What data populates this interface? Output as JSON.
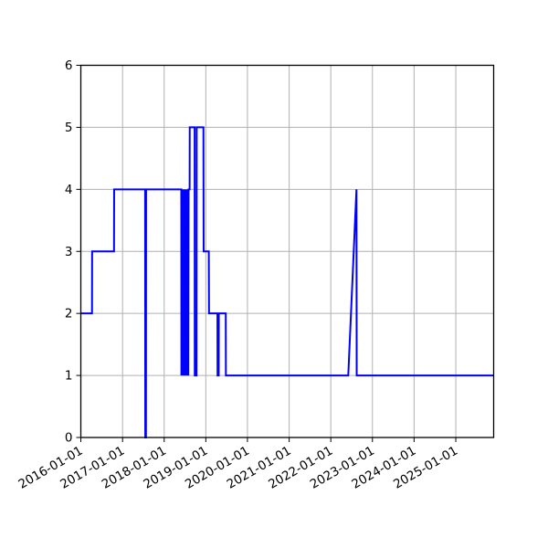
{
  "figure": {
    "background": "#ffffff"
  },
  "chart_data": {
    "type": "line",
    "title": "",
    "xlabel": "",
    "ylabel": "",
    "legend": null,
    "grid": true,
    "grid_color": "#b0b0b0",
    "axis_color": "#000000",
    "xlim": [
      "2016-01-01",
      "2025-11-29"
    ],
    "ylim": [
      0,
      6
    ],
    "x_tick_labels": [
      "2016-01-01",
      "2017-01-01",
      "2018-01-01",
      "2019-01-01",
      "2020-01-01",
      "2021-01-01",
      "2022-01-01",
      "2023-01-01",
      "2024-01-01",
      "2025-01-01"
    ],
    "y_tick_labels": [
      "0",
      "1",
      "2",
      "3",
      "4",
      "5",
      "6"
    ],
    "series": [
      {
        "name": "value-over-time",
        "color": "#0000ff",
        "points": [
          [
            "2016-01-01",
            2
          ],
          [
            "2016-04-08",
            2
          ],
          [
            "2016-04-09",
            3
          ],
          [
            "2016-10-18",
            3
          ],
          [
            "2016-10-19",
            4
          ],
          [
            "2017-07-18",
            4
          ],
          [
            "2017-07-19",
            0
          ],
          [
            "2017-07-25",
            0
          ],
          [
            "2017-07-26",
            4
          ],
          [
            "2018-05-31",
            4
          ],
          [
            "2018-06-01",
            1
          ],
          [
            "2018-06-04",
            4
          ],
          [
            "2018-06-16",
            1
          ],
          [
            "2018-06-19",
            4
          ],
          [
            "2018-07-01",
            1
          ],
          [
            "2018-07-04",
            4
          ],
          [
            "2018-07-16",
            1
          ],
          [
            "2018-07-19",
            4
          ],
          [
            "2018-07-31",
            1
          ],
          [
            "2018-08-03",
            4
          ],
          [
            "2018-08-12",
            4
          ],
          [
            "2018-08-13",
            5
          ],
          [
            "2018-09-25",
            5
          ],
          [
            "2018-09-26",
            1
          ],
          [
            "2018-10-12",
            1
          ],
          [
            "2018-10-13",
            5
          ],
          [
            "2018-12-11",
            5
          ],
          [
            "2018-12-13",
            3
          ],
          [
            "2019-01-27",
            3
          ],
          [
            "2019-01-29",
            2
          ],
          [
            "2019-04-13",
            2
          ],
          [
            "2019-04-14",
            1
          ],
          [
            "2019-04-24",
            1
          ],
          [
            "2019-04-25",
            2
          ],
          [
            "2019-06-25",
            2
          ],
          [
            "2019-06-26",
            1
          ],
          [
            "2022-06-03",
            1
          ],
          [
            "2022-08-14",
            4
          ],
          [
            "2022-08-16",
            1
          ],
          [
            "2025-11-29",
            1
          ]
        ]
      }
    ]
  }
}
